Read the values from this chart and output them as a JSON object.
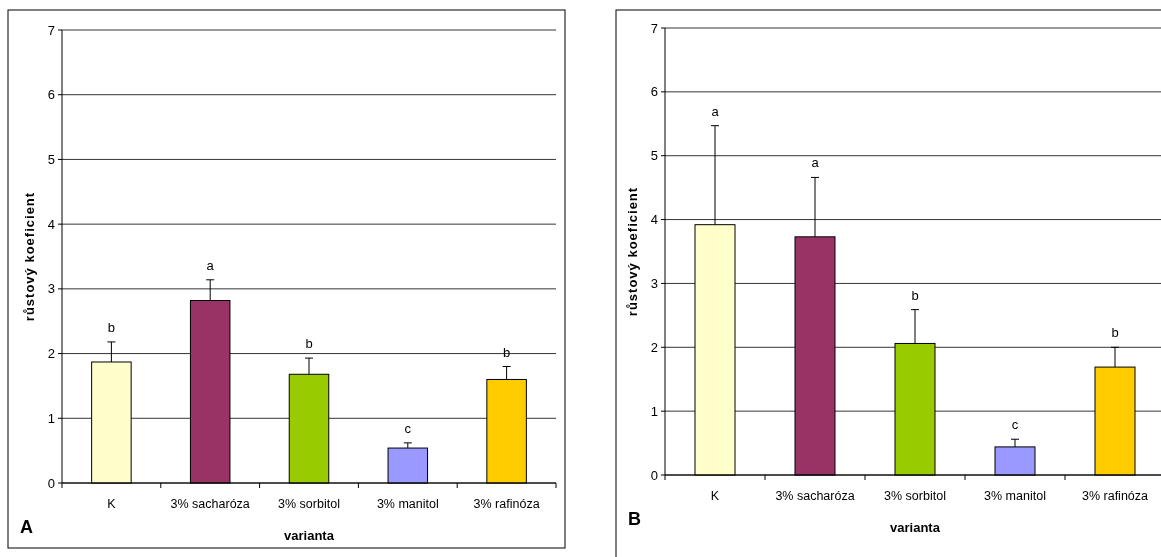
{
  "chart_data": [
    {
      "type": "bar",
      "xlabel": "varianta",
      "ylabel": "růstový koeficient",
      "categories": [
        "K",
        "3% sacharóza",
        "3% sorbitol",
        "3% manitol",
        "3% rafinóza"
      ],
      "values": [
        1.87,
        2.82,
        1.68,
        0.54,
        1.6
      ],
      "errors": [
        [
          1.87,
          2.18
        ],
        [
          2.82,
          3.14
        ],
        [
          1.68,
          1.93
        ],
        [
          0.54,
          0.62
        ],
        [
          1.6,
          1.8
        ]
      ],
      "colors": [
        "#ffffcc",
        "#993366",
        "#99cc00",
        "#9999ff",
        "#ffcc00"
      ],
      "ylim": [
        0,
        7
      ],
      "yticks": [
        0,
        1,
        2,
        3,
        4,
        5,
        6,
        7
      ],
      "grid": "y",
      "annotations": [
        {
          "text": "b",
          "x": "K",
          "y": 2.18
        },
        {
          "text": "a",
          "x": "3% sacharóza",
          "y": 3.14
        },
        {
          "text": "b",
          "x": "3% sorbitol",
          "y": 1.93
        },
        {
          "text": "c",
          "x": "3% manitol",
          "y": 0.62
        },
        {
          "text": "b",
          "x": "3% rafinóza",
          "y": 1.8
        },
        "A"
      ]
    },
    {
      "type": "bar",
      "xlabel": "varianta",
      "ylabel": "růstový koeficient",
      "categories": [
        "K",
        "3% sacharóza",
        "3% sorbitol",
        "3% manitol",
        "3% rafinóza"
      ],
      "values": [
        3.92,
        3.73,
        2.06,
        0.44,
        1.69
      ],
      "errors": [
        [
          3.92,
          5.47
        ],
        [
          3.73,
          4.66
        ],
        [
          2.06,
          2.59
        ],
        [
          0.44,
          0.56
        ],
        [
          1.69,
          2.0
        ]
      ],
      "colors": [
        "#ffffcc",
        "#993366",
        "#99cc00",
        "#9999ff",
        "#ffcc00"
      ],
      "ylim": [
        0,
        7
      ],
      "yticks": [
        0,
        1,
        2,
        3,
        4,
        5,
        6,
        7
      ],
      "grid": "y",
      "annotations": [
        {
          "text": "a",
          "x": "K",
          "y": 5.47
        },
        {
          "text": "a",
          "x": "3% sacharóza",
          "y": 4.66
        },
        {
          "text": "b",
          "x": "3% sorbitol",
          "y": 2.59
        },
        {
          "text": "c",
          "x": "3% manitol",
          "y": 0.56
        },
        {
          "text": "b",
          "x": "3% rafinóza",
          "y": 2.0
        },
        "B"
      ]
    }
  ]
}
